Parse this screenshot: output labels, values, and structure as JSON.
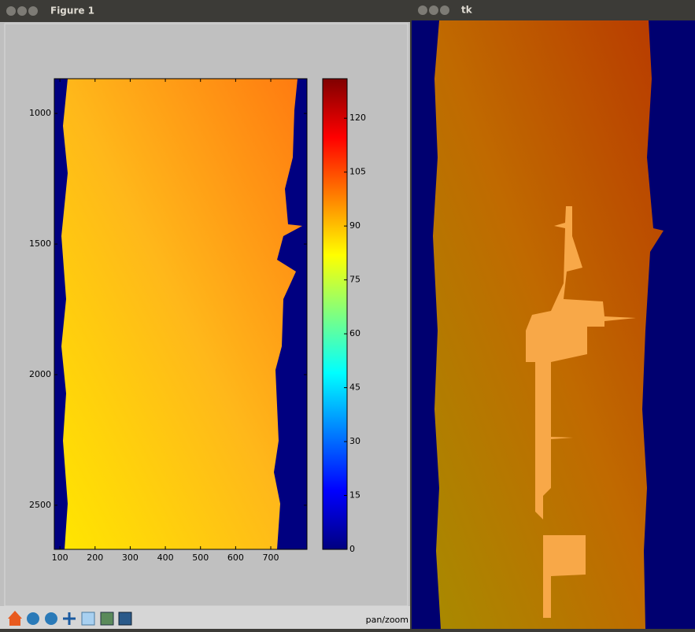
{
  "windows": {
    "figure_title": "Figure 1",
    "tk_title": "tk",
    "status": "pan/zoom"
  },
  "chart_data": {
    "type": "image",
    "xlim": [
      84,
      803
    ],
    "xticks": [
      100,
      200,
      300,
      400,
      500,
      600,
      700
    ],
    "ylim": [
      2669,
      867
    ],
    "yticks": [
      1000,
      1500,
      2000,
      2500
    ],
    "colorbar": {
      "lim": [
        0,
        131
      ],
      "ticks": [
        0,
        15,
        30,
        45,
        60,
        75,
        90,
        105,
        120
      ]
    }
  }
}
